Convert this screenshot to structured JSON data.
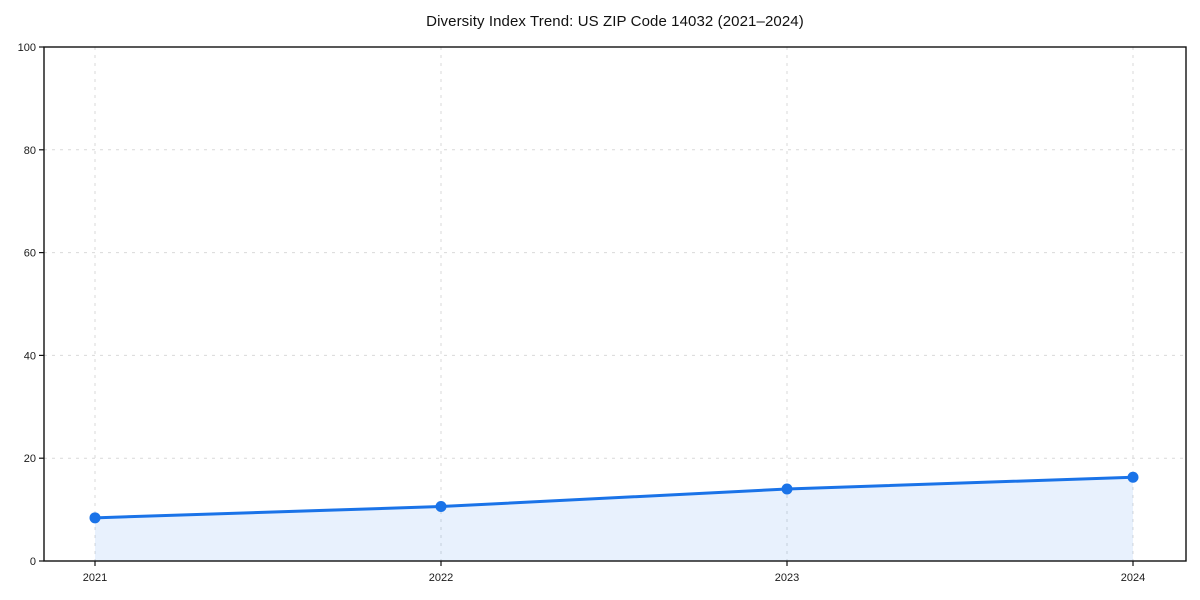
{
  "chart_data": {
    "type": "line",
    "title": "Diversity Index Trend: US ZIP Code 14032 (2021–2024)",
    "categories": [
      "2021",
      "2022",
      "2023",
      "2024"
    ],
    "x": [
      2021,
      2022,
      2023,
      2024
    ],
    "series": [
      {
        "name": "Diversity Index",
        "values": [
          8.4,
          10.6,
          14.0,
          16.3
        ]
      }
    ],
    "xlabel": "",
    "ylabel": "",
    "ylim": [
      0,
      100
    ],
    "yticks": [
      0,
      20,
      40,
      60,
      80,
      100
    ],
    "grid": "dashed, both axes",
    "legend": "none",
    "area_fill": "under line to y=0",
    "marker": "circle",
    "colors": {
      "line": "#1a73e8",
      "marker": "#1a73e8",
      "fill": "#1a73e8",
      "fill_opacity": 0.1,
      "grid": "#d9d9d9",
      "spine": "#111111",
      "tick_text": "#1a1a1a",
      "background": "#ffffff"
    }
  }
}
